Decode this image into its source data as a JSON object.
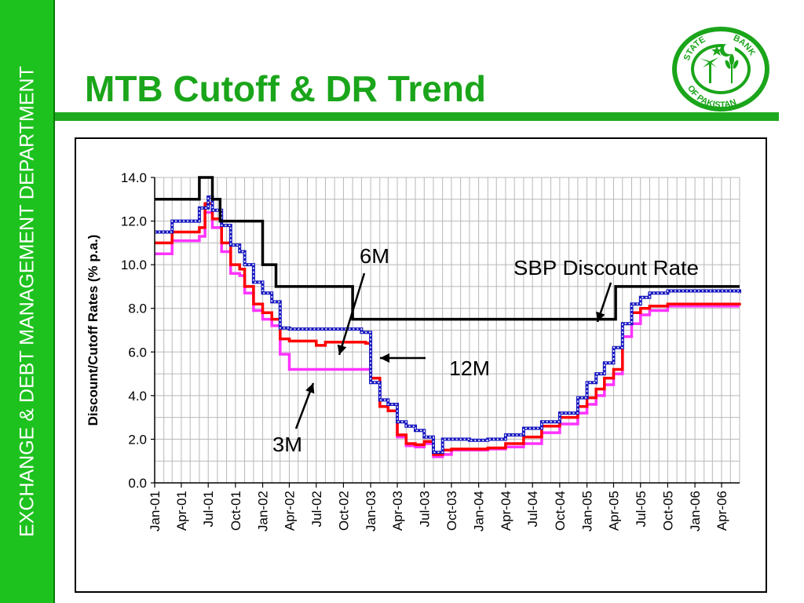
{
  "slide": {
    "title": "MTB Cutoff & DR Trend",
    "department": "EXCHANGE & DEBT MANAGEMENT DEPARTMENT",
    "logo_text": [
      "STATE",
      "BANK",
      "OF PAKISTAN"
    ],
    "colors": {
      "band": "#1ec21e",
      "title": "#1aa51a"
    }
  },
  "chart_data": {
    "type": "line",
    "ylabel": "Discount/Cutoff Rates (% p.a.)",
    "xlabel": "",
    "ylim": [
      0,
      14
    ],
    "yticks": [
      "0.0",
      "2.0",
      "4.0",
      "6.0",
      "8.0",
      "10.0",
      "12.0",
      "14.0"
    ],
    "xticks": [
      "Jan-01",
      "Apr-01",
      "Jul-01",
      "Oct-01",
      "Jan-02",
      "Apr-02",
      "Jul-02",
      "Oct-02",
      "Jan-03",
      "Apr-03",
      "Jul-03",
      "Oct-03",
      "Jan-04",
      "Apr-04",
      "Jul-04",
      "Oct-04",
      "Jan-05",
      "Apr-05",
      "Jul-05",
      "Oct-05",
      "Jan-06",
      "Apr-06"
    ],
    "grid": true,
    "annotations": [
      {
        "text": "6M",
        "series": "6M"
      },
      {
        "text": "SBP Discount Rate",
        "series": "SBP Discount Rate"
      },
      {
        "text": "12M",
        "series": "12M"
      },
      {
        "text": "3M",
        "series": "3M"
      }
    ],
    "series": [
      {
        "name": "SBP Discount Rate",
        "color": "#000000",
        "style": "step",
        "x": [
          "2001-01-01",
          "2001-06-01",
          "2001-07-15",
          "2001-08-10",
          "2002-01-01",
          "2002-02-15",
          "2002-11-01",
          "2005-04-08",
          "2006-06-01"
        ],
        "values": [
          13.0,
          14.0,
          13.0,
          12.0,
          10.0,
          9.0,
          7.5,
          9.0,
          9.0
        ]
      },
      {
        "name": "12M",
        "color": "#1515c0",
        "style": "step-dotted",
        "x": [
          "2001-01-01",
          "2001-03-01",
          "2001-06-01",
          "2001-07-01",
          "2001-07-15",
          "2001-08-15",
          "2001-09-15",
          "2001-10-15",
          "2001-11-01",
          "2001-12-01",
          "2002-01-01",
          "2002-02-01",
          "2002-03-01",
          "2002-04-01",
          "2002-05-01",
          "2002-12-01",
          "2003-01-01",
          "2003-02-01",
          "2003-03-01",
          "2003-04-01",
          "2003-05-01",
          "2003-06-01",
          "2003-07-01",
          "2003-08-01",
          "2003-09-01",
          "2003-10-01",
          "2003-12-01",
          "2004-02-01",
          "2004-04-01",
          "2004-06-01",
          "2004-08-01",
          "2004-10-01",
          "2004-12-01",
          "2005-01-01",
          "2005-02-01",
          "2005-03-01",
          "2005-04-01",
          "2005-05-01",
          "2005-06-01",
          "2005-07-01",
          "2005-08-01",
          "2005-10-01",
          "2006-06-01"
        ],
        "values": [
          11.5,
          12.0,
          12.6,
          13.1,
          12.5,
          11.8,
          10.9,
          10.6,
          10.0,
          9.2,
          8.7,
          8.3,
          7.1,
          7.05,
          7.05,
          6.9,
          4.6,
          3.8,
          3.6,
          2.8,
          2.6,
          2.4,
          2.1,
          1.4,
          2.0,
          2.0,
          1.95,
          2.0,
          2.2,
          2.5,
          2.8,
          3.2,
          3.9,
          4.6,
          5.0,
          5.5,
          6.2,
          7.3,
          8.2,
          8.5,
          8.7,
          8.8,
          8.7
        ]
      },
      {
        "name": "6M",
        "color": "#ff0000",
        "style": "step",
        "x": [
          "2001-01-01",
          "2001-03-01",
          "2001-06-01",
          "2001-06-20",
          "2001-07-15",
          "2001-08-15",
          "2001-09-15",
          "2001-10-15",
          "2001-11-01",
          "2001-12-01",
          "2002-01-01",
          "2002-02-01",
          "2002-03-01",
          "2002-04-01",
          "2002-06-01",
          "2002-07-01",
          "2002-08-01",
          "2002-12-15",
          "2003-01-01",
          "2003-02-01",
          "2003-03-01",
          "2003-04-01",
          "2003-05-01",
          "2003-06-01",
          "2003-07-01",
          "2003-08-01",
          "2003-09-01",
          "2003-10-01",
          "2003-12-01",
          "2004-02-01",
          "2004-04-01",
          "2004-06-01",
          "2004-08-01",
          "2004-10-01",
          "2004-12-01",
          "2005-01-01",
          "2005-02-01",
          "2005-03-01",
          "2005-04-01",
          "2005-05-01",
          "2005-06-01",
          "2005-07-01",
          "2005-08-01",
          "2005-10-01",
          "2006-06-01"
        ],
        "values": [
          11.0,
          11.5,
          11.7,
          12.8,
          12.1,
          11.0,
          10.0,
          9.8,
          9.0,
          8.2,
          7.8,
          7.5,
          6.6,
          6.5,
          6.5,
          6.3,
          6.45,
          6.4,
          4.8,
          3.5,
          3.3,
          2.2,
          1.8,
          1.75,
          1.9,
          1.3,
          1.5,
          1.55,
          1.55,
          1.6,
          1.8,
          2.1,
          2.6,
          3.0,
          3.5,
          3.9,
          4.3,
          4.8,
          5.2,
          7.3,
          7.8,
          8.0,
          8.1,
          8.2,
          8.25
        ]
      },
      {
        "name": "3M",
        "color": "#ff33ff",
        "style": "step",
        "x": [
          "2001-01-01",
          "2001-03-01",
          "2001-06-01",
          "2001-06-20",
          "2001-07-15",
          "2001-08-15",
          "2001-09-15",
          "2001-10-15",
          "2001-11-01",
          "2001-12-01",
          "2002-01-01",
          "2002-02-01",
          "2002-03-01",
          "2002-04-01",
          "2002-12-15",
          "2003-01-01",
          "2003-02-01",
          "2003-03-01",
          "2003-04-01",
          "2003-05-01",
          "2003-06-01",
          "2003-07-01",
          "2003-08-01",
          "2003-09-01",
          "2003-10-01",
          "2003-12-01",
          "2004-02-01",
          "2004-04-01",
          "2004-06-01",
          "2004-08-01",
          "2004-10-01",
          "2004-12-01",
          "2005-01-01",
          "2005-02-01",
          "2005-03-01",
          "2005-04-01",
          "2005-05-01",
          "2005-06-01",
          "2005-07-01",
          "2005-08-01",
          "2005-10-01",
          "2006-06-01"
        ],
        "values": [
          10.5,
          11.1,
          11.3,
          12.4,
          11.7,
          10.6,
          9.6,
          9.5,
          8.7,
          7.9,
          7.5,
          7.2,
          5.9,
          5.2,
          5.2,
          4.6,
          3.5,
          3.3,
          2.1,
          1.7,
          1.65,
          1.8,
          1.2,
          1.3,
          1.5,
          1.5,
          1.55,
          1.65,
          1.8,
          2.3,
          2.7,
          3.2,
          3.6,
          4.0,
          4.5,
          5.0,
          6.7,
          7.3,
          7.7,
          7.9,
          8.1,
          8.1
        ]
      }
    ]
  }
}
